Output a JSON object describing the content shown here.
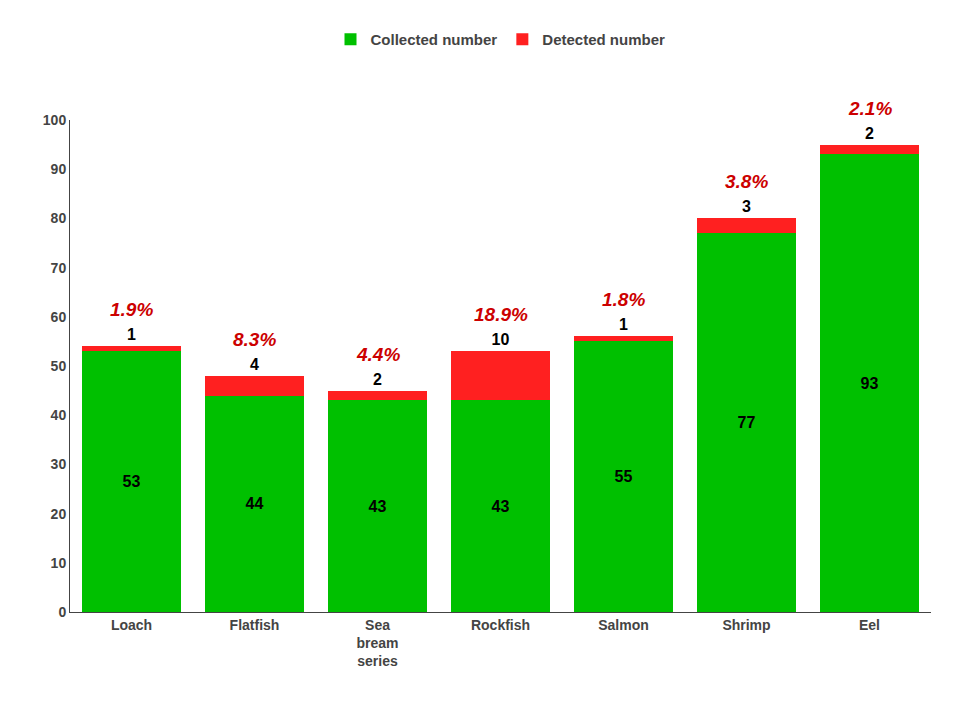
{
  "chart_data": {
    "type": "bar",
    "stacked": true,
    "categories": [
      "Loach",
      "Flatfish",
      "Sea\nbream\nseries",
      "Rockfish",
      "Salmon",
      "Shrimp",
      "Eel"
    ],
    "series": [
      {
        "name": "Collected number",
        "color": "#00C000",
        "values": [
          53,
          44,
          43,
          43,
          55,
          77,
          93
        ]
      },
      {
        "name": "Detected number",
        "color": "#FF2020",
        "values": [
          1,
          4,
          2,
          10,
          1,
          3,
          2
        ]
      }
    ],
    "annotations": [
      {
        "x": "Loach",
        "text": "1.9%",
        "color": "#CC0000"
      },
      {
        "x": "Flatfish",
        "text": "8.3%",
        "color": "#CC0000"
      },
      {
        "x": "Sea\nbream\nseries",
        "text": "4.4%",
        "color": "#CC0000"
      },
      {
        "x": "Rockfish",
        "text": "18.9%",
        "color": "#CC0000"
      },
      {
        "x": "Salmon",
        "text": "1.8%",
        "color": "#CC0000"
      },
      {
        "x": "Shrimp",
        "text": "3.8%",
        "color": "#CC0000"
      },
      {
        "x": "Eel",
        "text": "2.1%",
        "color": "#CC0000"
      }
    ],
    "data_labels": true,
    "ylim": [
      0,
      100
    ],
    "yticks": [
      0,
      10,
      20,
      30,
      40,
      50,
      60,
      70,
      80,
      90,
      100
    ],
    "grid": false,
    "legend": "top"
  }
}
